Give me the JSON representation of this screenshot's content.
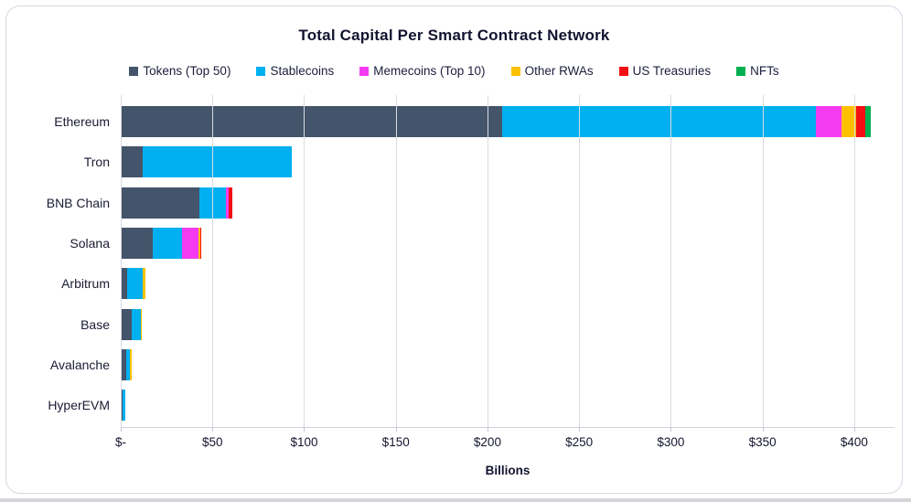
{
  "chart_data": {
    "type": "bar",
    "orientation": "horizontal-stacked",
    "title": "Total Capital Per Smart Contract Network",
    "xlabel": "Billions",
    "legend_position": "top",
    "grid": true,
    "axis_max": 422,
    "units": "USD billions",
    "ticks": [
      {
        "value": 0,
        "label": "$-"
      },
      {
        "value": 50,
        "label": "$50"
      },
      {
        "value": 100,
        "label": "$100"
      },
      {
        "value": 150,
        "label": "$150"
      },
      {
        "value": 200,
        "label": "$200"
      },
      {
        "value": 250,
        "label": "$250"
      },
      {
        "value": 300,
        "label": "$300"
      },
      {
        "value": 350,
        "label": "$350"
      },
      {
        "value": 400,
        "label": "$400"
      }
    ],
    "categories": [
      "Ethereum",
      "Tron",
      "BNB Chain",
      "Solana",
      "Arbitrum",
      "Base",
      "Avalanche",
      "HyperEVM"
    ],
    "series": [
      {
        "name": "Tokens (Top 50)",
        "color": "#44546A",
        "values": [
          208,
          12,
          43,
          17.5,
          3.5,
          6,
          2.8,
          1
        ]
      },
      {
        "name": "Stablecoins",
        "color": "#00B0F0",
        "values": [
          171,
          81.5,
          14.5,
          16,
          8.5,
          5.2,
          2.2,
          1.3
        ]
      },
      {
        "name": "Memecoins (Top 10)",
        "color": "#F43BF2",
        "values": [
          14,
          0,
          1.5,
          9,
          0,
          0,
          0,
          0
        ]
      },
      {
        "name": "Other RWAs",
        "color": "#FFC000",
        "values": [
          8,
          0,
          0,
          0.8,
          1.3,
          0.3,
          0.8,
          0
        ]
      },
      {
        "name": "US Treasuries",
        "color": "#F50F14",
        "values": [
          5,
          0,
          2,
          0.5,
          0,
          0,
          0,
          0
        ]
      },
      {
        "name": "NFTs",
        "color": "#00B050",
        "values": [
          3,
          0,
          0,
          0,
          0,
          0,
          0,
          0
        ]
      }
    ]
  }
}
